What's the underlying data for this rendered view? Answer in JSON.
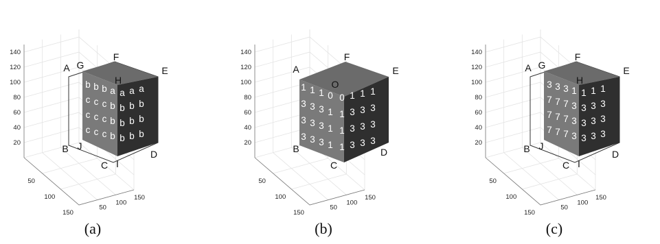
{
  "axes": {
    "z_ticks": [
      "20",
      "40",
      "60",
      "80",
      "100",
      "120",
      "140"
    ],
    "left_ticks": [
      "50",
      "100",
      "150"
    ],
    "right_ticks": [
      "50",
      "100",
      "150"
    ]
  },
  "colors": {
    "top_face": "#6b6b6b",
    "front_face": "#7a7a7a",
    "side_face": "#2f2f2f",
    "cell_text": "#ffffff"
  },
  "panels": [
    {
      "caption": "(a)",
      "layout": "cavity",
      "vertex_labels": {
        "A": "A",
        "B": "B",
        "C": "C",
        "D": "D",
        "E": "E",
        "F": "F",
        "G": "G",
        "H": "H",
        "I": "I",
        "J": "J"
      },
      "front_grid": [
        [
          "b",
          "b",
          "b",
          "a"
        ],
        [
          "c",
          "c",
          "c",
          "b"
        ],
        [
          "c",
          "c",
          "c",
          "b"
        ],
        [
          "c",
          "c",
          "c",
          "b"
        ]
      ],
      "side_grid": [
        [
          "a",
          "a",
          "a"
        ],
        [
          "b",
          "b",
          "b"
        ],
        [
          "b",
          "b",
          "b"
        ],
        [
          "b",
          "b",
          "b"
        ]
      ]
    },
    {
      "caption": "(b)",
      "layout": "full",
      "vertex_labels": {
        "A": "A",
        "B": "B",
        "C": "C",
        "D": "D",
        "E": "E",
        "F": "F",
        "O": "O"
      },
      "front_grid": [
        [
          "1",
          "1",
          "1",
          "0"
        ],
        [
          "3",
          "3",
          "3",
          "1"
        ],
        [
          "3",
          "3",
          "3",
          "1"
        ],
        [
          "3",
          "3",
          "3",
          "1"
        ]
      ],
      "side_grid": [
        [
          "0",
          "1",
          "1",
          "1"
        ],
        [
          "1",
          "3",
          "3",
          "3"
        ],
        [
          "1",
          "3",
          "3",
          "3"
        ],
        [
          "1",
          "3",
          "3",
          "3"
        ]
      ]
    },
    {
      "caption": "(c)",
      "layout": "cavity",
      "vertex_labels": {
        "A": "A",
        "B": "B",
        "C": "C",
        "D": "D",
        "E": "E",
        "F": "F",
        "G": "G",
        "H": "H",
        "I": "I",
        "J": "J"
      },
      "front_grid": [
        [
          "3",
          "3",
          "3",
          "1"
        ],
        [
          "7",
          "7",
          "7",
          "3"
        ],
        [
          "7",
          "7",
          "7",
          "3"
        ],
        [
          "7",
          "7",
          "7",
          "3"
        ]
      ],
      "side_grid": [
        [
          "1",
          "1",
          "1"
        ],
        [
          "3",
          "3",
          "3"
        ],
        [
          "3",
          "3",
          "3"
        ],
        [
          "3",
          "3",
          "3"
        ]
      ]
    }
  ]
}
